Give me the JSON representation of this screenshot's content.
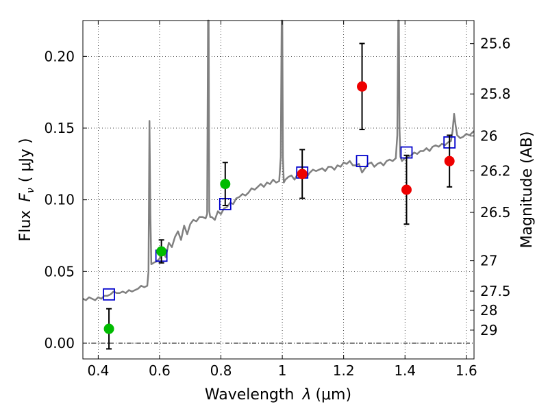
{
  "chart_data": {
    "type": "scatter",
    "xlabel_main": "Wavelength",
    "xlabel_var": "λ",
    "xlabel_unit": "(μm)",
    "ylabel_main": "Flux",
    "ylabel_var": "F",
    "ylabel_sub": "ν",
    "ylabel_unit": "( μJy )",
    "y2label": "Magnitude (AB)",
    "xlim": [
      0.35,
      1.625
    ],
    "ylim": [
      -0.011,
      0.225
    ],
    "grid": true,
    "xticks": [
      0.4,
      0.6,
      0.8,
      1.0,
      1.2,
      1.4,
      1.6
    ],
    "xtick_labels": [
      "0.4",
      "0.6",
      "0.8",
      "1",
      "1.2",
      "1.4",
      "1.6"
    ],
    "yticks": [
      0.0,
      0.05,
      0.1,
      0.15,
      0.2
    ],
    "ytick_labels": [
      "0.00",
      "0.05",
      "0.10",
      "0.15",
      "0.20"
    ],
    "mag_ticks": [
      {
        "label": "25.6",
        "flux": 0.2089
      },
      {
        "label": "25.8",
        "flux": 0.1738
      },
      {
        "label": "26",
        "flux": 0.1445
      },
      {
        "label": "26.2",
        "flux": 0.1202
      },
      {
        "label": "26.5",
        "flux": 0.0912
      },
      {
        "label": "27",
        "flux": 0.0575
      },
      {
        "label": "27.5",
        "flux": 0.0363
      },
      {
        "label": "28",
        "flux": 0.0229
      },
      {
        "label": "29",
        "flux": 0.0091
      }
    ],
    "zero_line": 0.0,
    "series": [
      {
        "name": "model_sed",
        "kind": "line",
        "color": "#808080",
        "x": [
          0.35,
          0.36,
          0.37,
          0.38,
          0.39,
          0.4,
          0.41,
          0.42,
          0.43,
          0.44,
          0.45,
          0.46,
          0.47,
          0.48,
          0.49,
          0.5,
          0.51,
          0.52,
          0.53,
          0.54,
          0.55,
          0.56,
          0.564,
          0.567,
          0.57,
          0.573,
          0.58,
          0.59,
          0.6,
          0.61,
          0.62,
          0.63,
          0.64,
          0.65,
          0.66,
          0.67,
          0.68,
          0.69,
          0.7,
          0.71,
          0.72,
          0.73,
          0.74,
          0.75,
          0.755,
          0.758,
          0.76,
          0.762,
          0.765,
          0.77,
          0.78,
          0.79,
          0.8,
          0.81,
          0.82,
          0.83,
          0.84,
          0.85,
          0.86,
          0.87,
          0.88,
          0.89,
          0.9,
          0.91,
          0.92,
          0.93,
          0.94,
          0.95,
          0.96,
          0.97,
          0.98,
          0.99,
          0.995,
          0.998,
          1.0,
          1.002,
          1.005,
          1.01,
          1.02,
          1.03,
          1.04,
          1.05,
          1.06,
          1.07,
          1.08,
          1.09,
          1.1,
          1.11,
          1.12,
          1.13,
          1.14,
          1.15,
          1.16,
          1.17,
          1.18,
          1.19,
          1.2,
          1.21,
          1.22,
          1.23,
          1.24,
          1.25,
          1.26,
          1.27,
          1.28,
          1.29,
          1.3,
          1.31,
          1.32,
          1.33,
          1.34,
          1.35,
          1.36,
          1.37,
          1.375,
          1.378,
          1.38,
          1.382,
          1.385,
          1.39,
          1.4,
          1.41,
          1.42,
          1.43,
          1.44,
          1.45,
          1.46,
          1.47,
          1.48,
          1.49,
          1.5,
          1.51,
          1.52,
          1.53,
          1.54,
          1.55,
          1.555,
          1.56,
          1.565,
          1.57,
          1.58,
          1.59,
          1.6,
          1.61,
          1.62,
          1.625
        ],
        "y": [
          0.031,
          0.03,
          0.032,
          0.031,
          0.03,
          0.032,
          0.031,
          0.033,
          0.033,
          0.034,
          0.036,
          0.035,
          0.035,
          0.036,
          0.035,
          0.037,
          0.036,
          0.037,
          0.038,
          0.04,
          0.039,
          0.04,
          0.05,
          0.155,
          0.09,
          0.055,
          0.056,
          0.057,
          0.059,
          0.064,
          0.06,
          0.07,
          0.067,
          0.074,
          0.078,
          0.072,
          0.082,
          0.076,
          0.083,
          0.086,
          0.085,
          0.088,
          0.088,
          0.087,
          0.09,
          0.225,
          0.225,
          0.092,
          0.088,
          0.088,
          0.086,
          0.092,
          0.09,
          0.094,
          0.095,
          0.098,
          0.097,
          0.101,
          0.102,
          0.104,
          0.103,
          0.105,
          0.108,
          0.107,
          0.109,
          0.111,
          0.109,
          0.112,
          0.111,
          0.114,
          0.112,
          0.113,
          0.13,
          0.225,
          0.225,
          0.13,
          0.112,
          0.114,
          0.116,
          0.117,
          0.114,
          0.118,
          0.118,
          0.12,
          0.116,
          0.119,
          0.121,
          0.12,
          0.121,
          0.122,
          0.12,
          0.123,
          0.123,
          0.121,
          0.124,
          0.123,
          0.126,
          0.125,
          0.127,
          0.124,
          0.124,
          0.125,
          0.119,
          0.122,
          0.125,
          0.126,
          0.123,
          0.125,
          0.126,
          0.124,
          0.127,
          0.128,
          0.127,
          0.129,
          0.145,
          0.225,
          0.225,
          0.15,
          0.13,
          0.127,
          0.129,
          0.13,
          0.131,
          0.133,
          0.132,
          0.134,
          0.134,
          0.136,
          0.134,
          0.137,
          0.138,
          0.137,
          0.139,
          0.138,
          0.14,
          0.141,
          0.148,
          0.16,
          0.152,
          0.145,
          0.143,
          0.144,
          0.146,
          0.145,
          0.147,
          0.148
        ]
      },
      {
        "name": "model_band_flux",
        "kind": "open_square",
        "color": "#0000cc",
        "x": [
          0.435,
          0.606,
          0.814,
          1.065,
          1.26,
          1.405,
          1.545
        ],
        "y": [
          0.034,
          0.061,
          0.097,
          0.119,
          0.127,
          0.133,
          0.14
        ]
      },
      {
        "name": "observed_upper",
        "kind": "green_dot",
        "color": "#00bb00",
        "x": [
          0.435,
          0.606,
          0.814
        ],
        "y": [
          0.01,
          0.064,
          0.111
        ],
        "err": [
          0.014,
          0.008,
          0.015
        ]
      },
      {
        "name": "observed_detections",
        "kind": "red_dot",
        "color": "#ee0000",
        "x": [
          1.065,
          1.26,
          1.405,
          1.545
        ],
        "y": [
          0.118,
          0.179,
          0.107,
          0.127
        ],
        "err": [
          0.017,
          0.03,
          0.024,
          0.018
        ]
      }
    ]
  }
}
